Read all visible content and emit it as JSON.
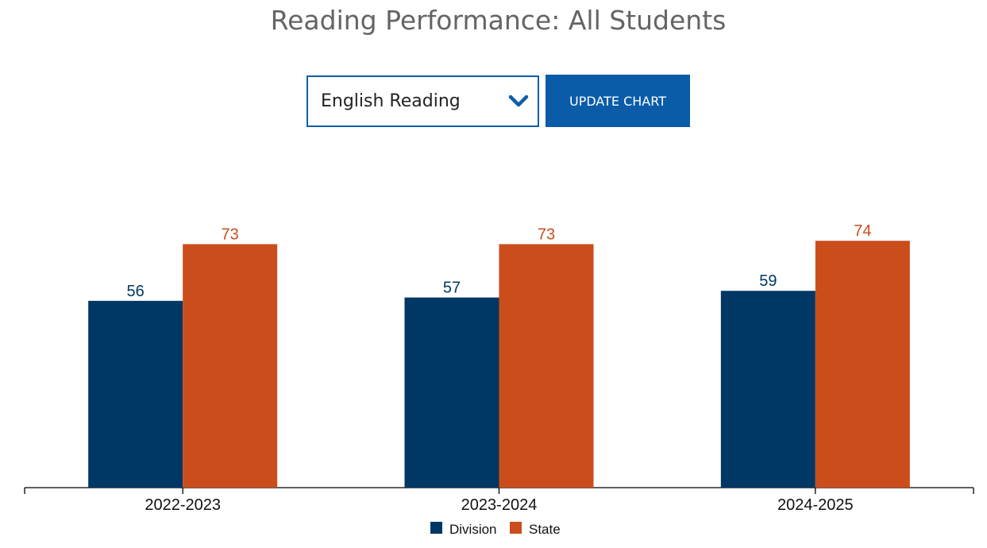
{
  "title": "Reading Performance: All Students",
  "controls": {
    "subject_select": {
      "value": "English Reading",
      "icon": "chevron-down-icon"
    },
    "update_button_label": "UPDATE CHART"
  },
  "colors": {
    "division": "#003764",
    "state": "#cb4d1c",
    "accent": "#0a5ca8"
  },
  "chart_data": {
    "type": "bar",
    "title": "Reading Performance: All Students",
    "categories": [
      "2022-2023",
      "2023-2024",
      "2024-2025"
    ],
    "series": [
      {
        "name": "Division",
        "values": [
          56,
          57,
          59
        ],
        "color": "#003764"
      },
      {
        "name": "State",
        "values": [
          73,
          73,
          74
        ],
        "color": "#cb4d1c"
      }
    ],
    "xlabel": "",
    "ylabel": "",
    "ylim": [
      0,
      100
    ],
    "grid": false,
    "data_labels": true,
    "legend": "bottom-center"
  }
}
